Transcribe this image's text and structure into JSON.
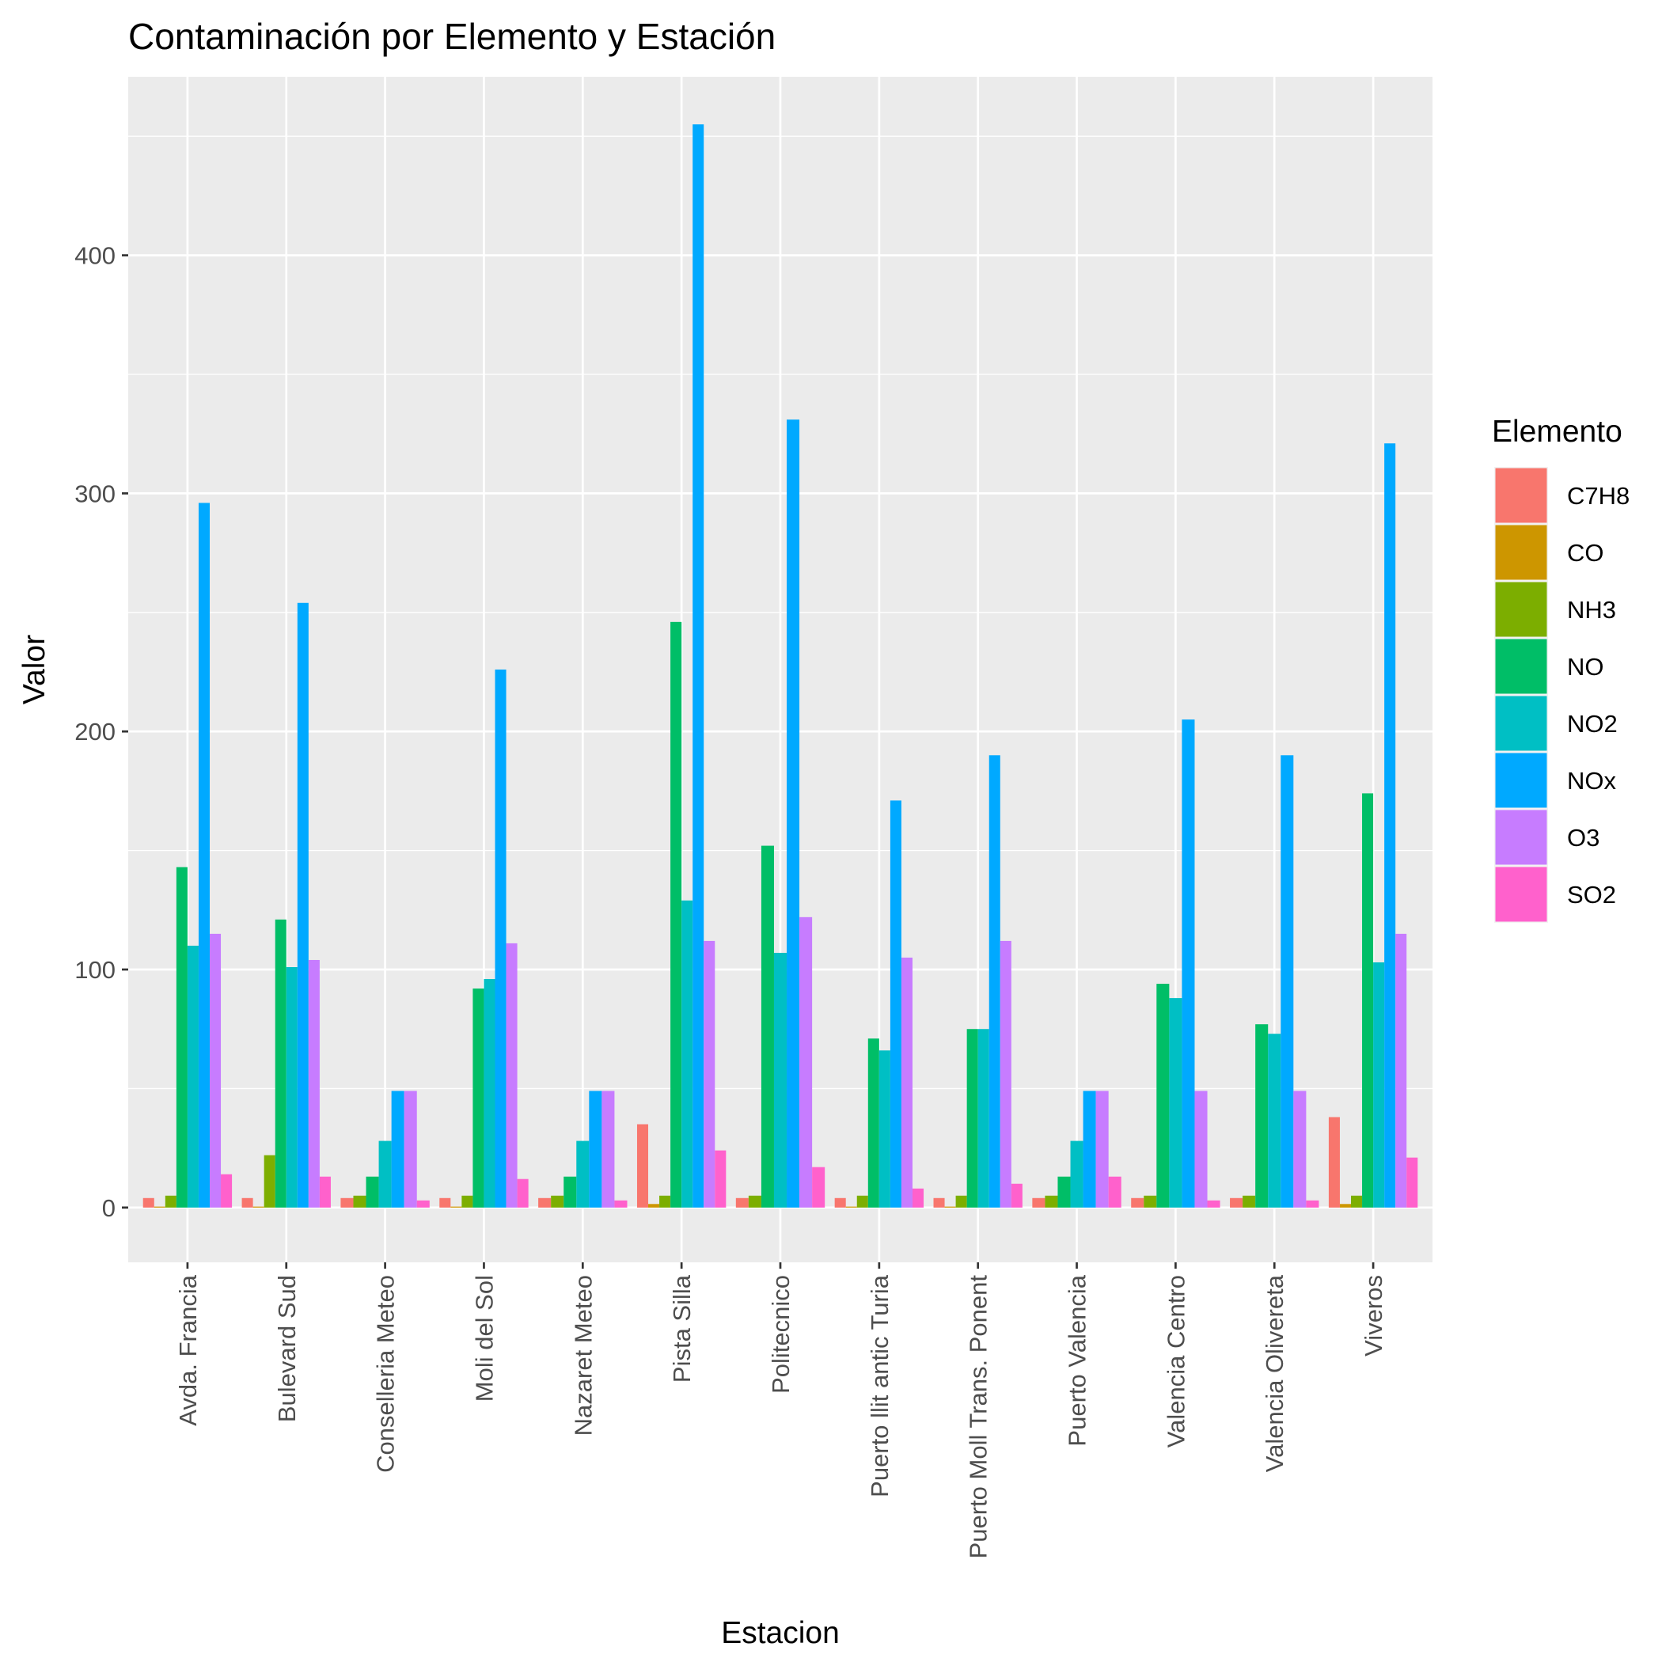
{
  "chart_data": {
    "type": "bar",
    "title": "Contaminación por Elemento y Estación",
    "xlabel": "Estacion",
    "ylabel": "Valor",
    "ylim": [
      -23,
      475
    ],
    "yticks": [
      0,
      100,
      200,
      300,
      400
    ],
    "grid": true,
    "legend": {
      "title": "Elemento",
      "position": "right"
    },
    "categories": [
      "Avda. Francia",
      "Bulevard Sud",
      "Conselleria Meteo",
      "Moli del Sol",
      "Nazaret Meteo",
      "Pista Silla",
      "Politecnico",
      "Puerto llit antic Turia",
      "Puerto Moll Trans. Ponent",
      "Puerto Valencia",
      "Valencia Centro",
      "Valencia Olivereta",
      "Viveros"
    ],
    "series": [
      {
        "name": "C7H8",
        "color": "#F8766D",
        "values": [
          4,
          4,
          4,
          4,
          4,
          35,
          4,
          4,
          4,
          4,
          4,
          4,
          38
        ]
      },
      {
        "name": "CO",
        "color": "#CD9600",
        "values": [
          0.4,
          0.4,
          null,
          0.4,
          null,
          1.5,
          null,
          0.4,
          0.4,
          null,
          null,
          null,
          1.5
        ]
      },
      {
        "name": "NH3",
        "color": "#7CAE00",
        "values": [
          5,
          22,
          5,
          5,
          5,
          5,
          5,
          5,
          5,
          5,
          5,
          5,
          5
        ]
      },
      {
        "name": "NO",
        "color": "#00BE67",
        "values": [
          143,
          121,
          13,
          92,
          13,
          246,
          152,
          71,
          75,
          13,
          94,
          77,
          174
        ]
      },
      {
        "name": "NO2",
        "color": "#00BFC4",
        "values": [
          110,
          101,
          28,
          96,
          28,
          129,
          107,
          66,
          75,
          28,
          88,
          73,
          103
        ]
      },
      {
        "name": "NOx",
        "color": "#00A9FF",
        "values": [
          296,
          254,
          49,
          226,
          49,
          455,
          331,
          171,
          190,
          49,
          205,
          190,
          321
        ]
      },
      {
        "name": "O3",
        "color": "#C77CFF",
        "values": [
          115,
          104,
          49,
          111,
          49,
          112,
          122,
          105,
          112,
          49,
          49,
          49,
          115
        ]
      },
      {
        "name": "SO2",
        "color": "#FF61CC",
        "values": [
          14,
          13,
          3,
          12,
          3,
          24,
          17,
          8,
          10,
          13,
          3,
          3,
          21
        ]
      }
    ]
  }
}
